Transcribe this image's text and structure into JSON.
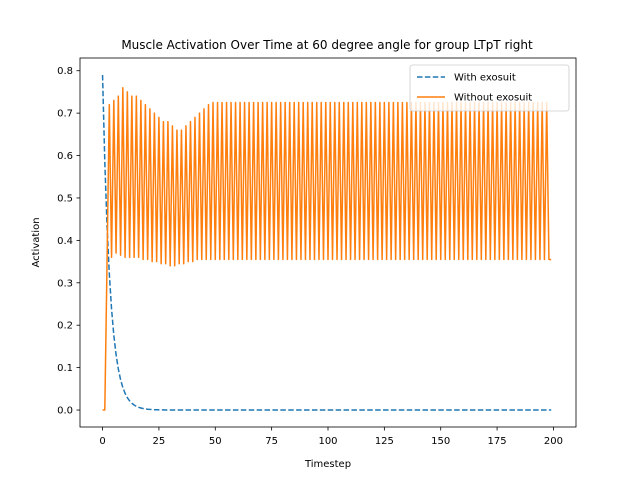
{
  "chart_data": {
    "type": "line",
    "title": "Muscle Activation Over Time at 60 degree angle for group LTpT right",
    "xlabel": "Timestep",
    "ylabel": "Activation",
    "xlim": [
      -10,
      210
    ],
    "ylim": [
      -0.04,
      0.83
    ],
    "xticks": [
      0,
      25,
      50,
      75,
      100,
      125,
      150,
      175,
      200
    ],
    "yticks": [
      0.0,
      0.1,
      0.2,
      0.3,
      0.4,
      0.5,
      0.6,
      0.7,
      0.8
    ],
    "ytick_labels": [
      "0.0",
      "0.1",
      "0.2",
      "0.3",
      "0.4",
      "0.5",
      "0.6",
      "0.7",
      "0.8"
    ],
    "grid": false,
    "legend_position": "upper right",
    "series": [
      {
        "name": "With exosuit",
        "style": "dashed",
        "color": "#1f77b4",
        "model": "exponential decay",
        "x_range": [
          0,
          199
        ],
        "initial_value": 0.79,
        "decay_rate": 0.3,
        "final_value": 0.0
      },
      {
        "name": "Without exosuit",
        "style": "solid",
        "color": "#ff7f0e",
        "model": "oscillation",
        "x_range": [
          0,
          199
        ],
        "initial_values": [
          0.0,
          0.0
        ],
        "period": 2,
        "peak_values": [
          0.72,
          0.73,
          0.74,
          0.76,
          0.75,
          0.74,
          0.74,
          0.73,
          0.72,
          0.71,
          0.7,
          0.69,
          0.68,
          0.68,
          0.67,
          0.66,
          0.66,
          0.67,
          0.68,
          0.69,
          0.7,
          0.71,
          0.72
        ],
        "trough_values": [
          0.35,
          0.36,
          0.37,
          0.365,
          0.36,
          0.36,
          0.36,
          0.36,
          0.355,
          0.355,
          0.35,
          0.35,
          0.345,
          0.345,
          0.34,
          0.34,
          0.345,
          0.345,
          0.35,
          0.35,
          0.355,
          0.355,
          0.355
        ],
        "steady_peak": 0.725,
        "steady_trough": 0.355,
        "final_value": 0.355
      }
    ]
  }
}
